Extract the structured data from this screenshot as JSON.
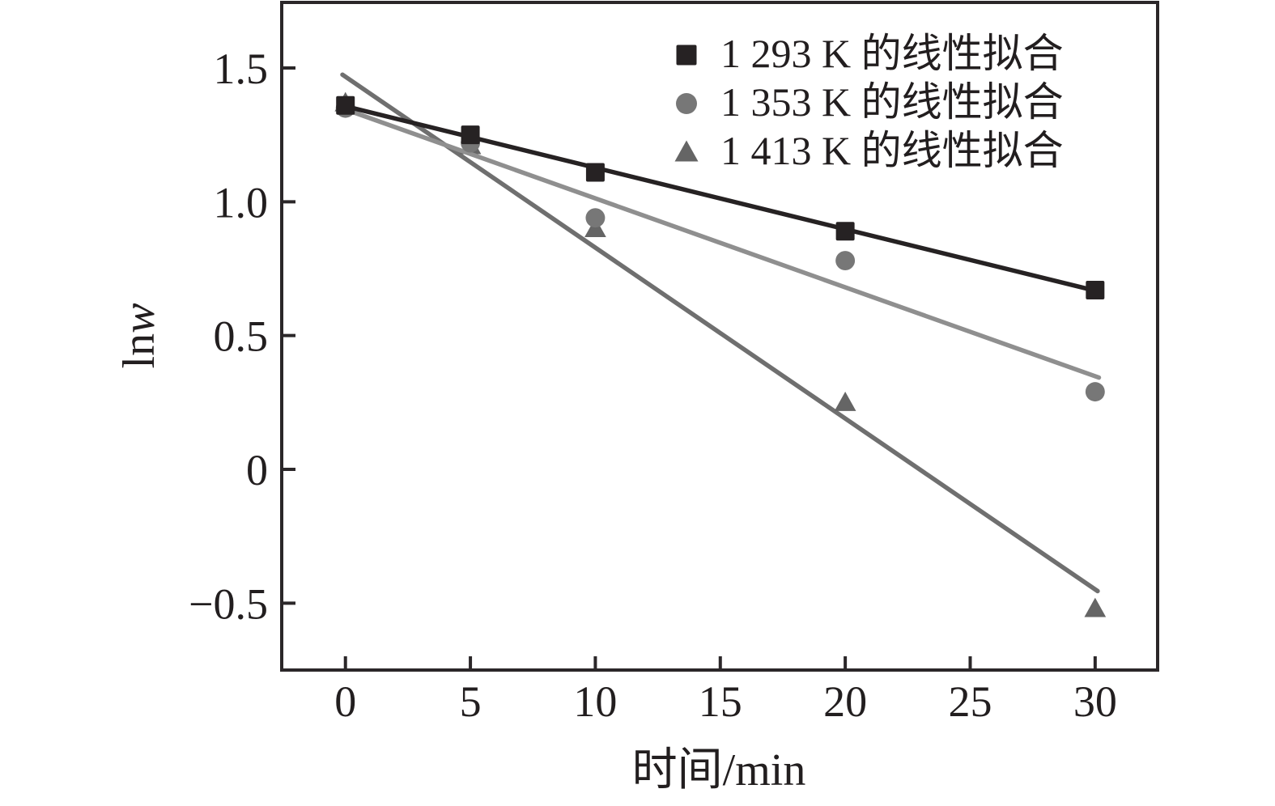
{
  "chart_data": {
    "type": "scatter",
    "title": "",
    "xlabel": "时间/min",
    "ylabel": "lnw",
    "ylabel_prefix": "ln",
    "ylabel_var": "w",
    "xlim": [
      -2.55,
      32.5
    ],
    "ylim": [
      -0.75,
      1.745
    ],
    "xticks": [
      0,
      5,
      10,
      15,
      20,
      25,
      30
    ],
    "xtick_labels": [
      "0",
      "5",
      "10",
      "15",
      "20",
      "25",
      "30"
    ],
    "yticks": [
      1.5,
      1.0,
      0.5,
      0,
      -0.5
    ],
    "ytick_labels": [
      "1.5",
      "1.0",
      "0.5",
      "0",
      "−0.5"
    ],
    "grid": false,
    "legend_position": "upper-right-inside",
    "axis_color": "#2b2729",
    "text_color": "#221e1f",
    "series": [
      {
        "name": "1 293 K 的线性拟合",
        "temperature_K": 1293,
        "marker": "square",
        "marker_color": "#262223",
        "line_color": "#262223",
        "points": [
          [
            0,
            1.36
          ],
          [
            5,
            1.25
          ],
          [
            10,
            1.11
          ],
          [
            20,
            0.89
          ],
          [
            30,
            0.67
          ]
        ],
        "fit_line": {
          "x": [
            0,
            29.9
          ],
          "y": [
            1.357,
            0.67
          ]
        }
      },
      {
        "name": "1 353 K 的线性拟合",
        "temperature_K": 1353,
        "marker": "circle",
        "marker_color": "#777777",
        "line_color": "#8f8f8f",
        "points": [
          [
            0,
            1.35
          ],
          [
            5,
            1.22
          ],
          [
            10,
            0.94
          ],
          [
            20,
            0.78
          ],
          [
            30,
            0.29
          ]
        ],
        "fit_line": {
          "x": [
            0,
            30.15
          ],
          "y": [
            1.345,
            0.343
          ]
        }
      },
      {
        "name": "1 413 K 的线性拟合",
        "temperature_K": 1413,
        "marker": "triangle",
        "marker_color": "#656565",
        "line_color": "#6f6f6f",
        "points": [
          [
            0,
            1.37
          ],
          [
            5,
            1.21
          ],
          [
            10,
            0.9
          ],
          [
            20,
            0.25
          ],
          [
            30,
            -0.52
          ]
        ],
        "fit_line": {
          "x": [
            -0.12,
            30.1
          ],
          "y": [
            1.475,
            -0.455
          ]
        }
      }
    ]
  }
}
